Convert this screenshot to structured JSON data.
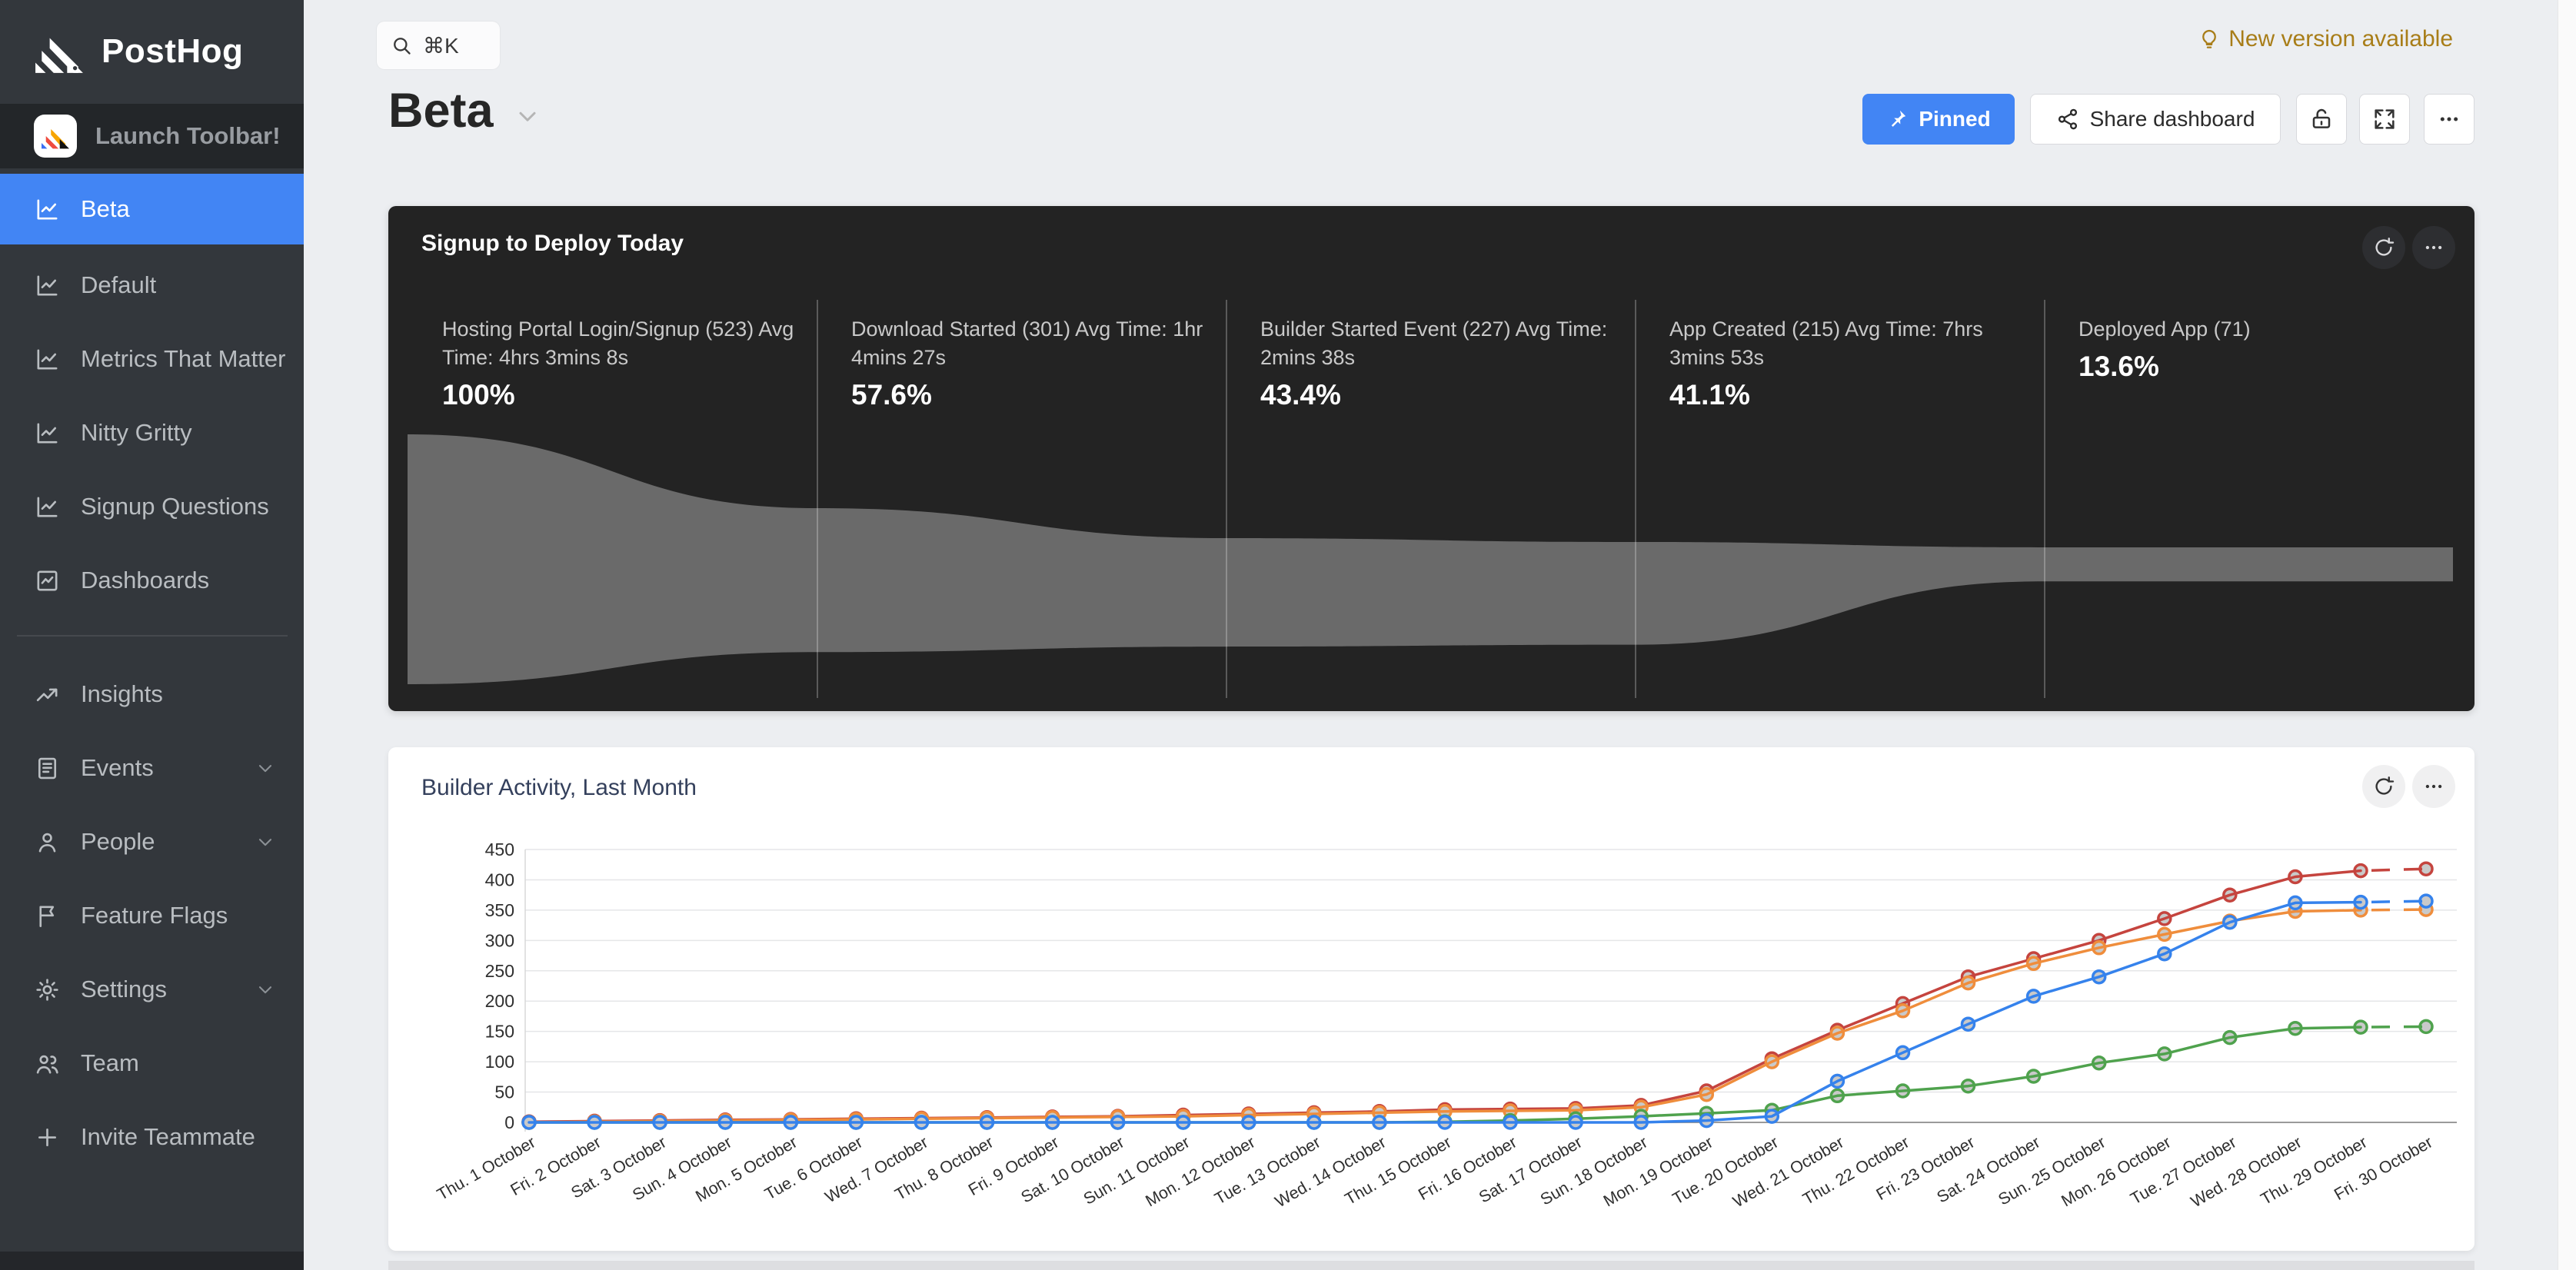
{
  "app_title": "PostHog",
  "colors": {
    "accent_blue": "#4285f4",
    "sidebar_bg": "#33373c",
    "dark_card_bg": "#232323",
    "funnel_fill": "#6a6a6a",
    "new_version_gold": "#a87d18",
    "page_bg": "#eceef1"
  },
  "icons": {
    "logo": "posthog-hedgehog",
    "search": "magnifier",
    "new_version": "lightbulb",
    "pinned": "pushpin",
    "share": "share-nodes",
    "lock": "unlocked-padlock",
    "expand": "arrows-out",
    "more": "ellipsis",
    "refresh": "circular-arrow",
    "submenu": "chevron-down"
  },
  "sidebar": {
    "logo_text": "PostHog",
    "launch_toolbar": "Launch Toolbar!",
    "dashboard_items": [
      {
        "label": "Beta",
        "active": true
      },
      {
        "label": "Default",
        "active": false
      },
      {
        "label": "Metrics That Matter",
        "active": false
      },
      {
        "label": "Nitty Gritty",
        "active": false
      },
      {
        "label": "Signup Questions",
        "active": false
      },
      {
        "label": "Dashboards",
        "active": false
      }
    ],
    "nav_items": [
      {
        "label": "Insights",
        "has_submenu": false
      },
      {
        "label": "Events",
        "has_submenu": true
      },
      {
        "label": "People",
        "has_submenu": true
      },
      {
        "label": "Feature Flags",
        "has_submenu": false
      },
      {
        "label": "Settings",
        "has_submenu": true
      },
      {
        "label": "Team",
        "has_submenu": false
      },
      {
        "label": "Invite Teammate",
        "has_submenu": false
      }
    ]
  },
  "topbar": {
    "search_shortcut": "⌘K",
    "new_version_label": "New version available"
  },
  "header": {
    "title": "Beta",
    "pinned_label": "Pinned",
    "share_label": "Share dashboard"
  },
  "funnel_card": {
    "title": "Signup to Deploy Today",
    "steps": [
      {
        "label": "Hosting Portal Login/Signup (523) Avg Time: 4hrs 3mins 8s",
        "count": 523,
        "pct": 100,
        "pct_label": "100%"
      },
      {
        "label": "Download Started (301) Avg Time: 1hr 4mins 27s",
        "count": 301,
        "pct": 57.6,
        "pct_label": "57.6%"
      },
      {
        "label": "Builder Started Event (227) Avg Time: 2mins 38s",
        "count": 227,
        "pct": 43.4,
        "pct_label": "43.4%"
      },
      {
        "label": "App Created (215) Avg Time: 7hrs 3mins 53s",
        "count": 215,
        "pct": 41.1,
        "pct_label": "41.1%"
      },
      {
        "label": "Deployed App (71)",
        "count": 71,
        "pct": 13.6,
        "pct_label": "13.6%"
      }
    ]
  },
  "chart_card": {
    "title": "Builder Activity, Last Month"
  },
  "chart_data": {
    "type": "line",
    "title": "Builder Activity, Last Month",
    "xlabel": "",
    "ylabel": "",
    "ylim": [
      0,
      450
    ],
    "yticks": [
      0,
      50,
      100,
      150,
      200,
      250,
      300,
      350,
      400,
      450
    ],
    "grid": true,
    "legend": "none",
    "last_segment_dashed": true,
    "x": [
      "Thu. 1 October",
      "Fri. 2 October",
      "Sat. 3 October",
      "Sun. 4 October",
      "Mon. 5 October",
      "Tue. 6 October",
      "Wed. 7 October",
      "Thu. 8 October",
      "Fri. 9 October",
      "Sat. 10 October",
      "Sun. 11 October",
      "Mon. 12 October",
      "Tue. 13 October",
      "Wed. 14 October",
      "Thu. 15 October",
      "Fri. 16 October",
      "Sat. 17 October",
      "Sun. 18 October",
      "Mon. 19 October",
      "Tue. 20 October",
      "Wed. 21 October",
      "Thu. 22 October",
      "Fri. 23 October",
      "Sat. 24 October",
      "Sun. 25 October",
      "Mon. 26 October",
      "Tue. 27 October",
      "Wed. 28 October",
      "Thu. 29 October",
      "Fri. 30 October"
    ],
    "series": [
      {
        "name": "red",
        "color": "#c5443e",
        "values": [
          1,
          2,
          3,
          4,
          5,
          6,
          7,
          8,
          9,
          10,
          12,
          14,
          16,
          18,
          21,
          22,
          23,
          28,
          52,
          105,
          152,
          196,
          240,
          270,
          300,
          336,
          375,
          405,
          415,
          418
        ]
      },
      {
        "name": "orange",
        "color": "#ef8d3c",
        "values": [
          0,
          1,
          2,
          3,
          4,
          5,
          6,
          7,
          8,
          9,
          10,
          12,
          14,
          16,
          18,
          19,
          20,
          25,
          46,
          100,
          147,
          184,
          230,
          262,
          288,
          310,
          332,
          348,
          350,
          351
        ]
      },
      {
        "name": "green",
        "color": "#4fa24d",
        "values": [
          0,
          0,
          0,
          0,
          0,
          0,
          0,
          0,
          0,
          0,
          0,
          0,
          0,
          0,
          1,
          3,
          6,
          10,
          15,
          20,
          44,
          52,
          60,
          76,
          98,
          113,
          140,
          155,
          157,
          158
        ]
      },
      {
        "name": "blue",
        "color": "#3582ec",
        "values": [
          0,
          0,
          0,
          0,
          0,
          0,
          0,
          0,
          0,
          0,
          0,
          0,
          0,
          0,
          0,
          0,
          0,
          0,
          3,
          10,
          68,
          115,
          162,
          208,
          240,
          278,
          330,
          362,
          363,
          365
        ]
      }
    ]
  }
}
